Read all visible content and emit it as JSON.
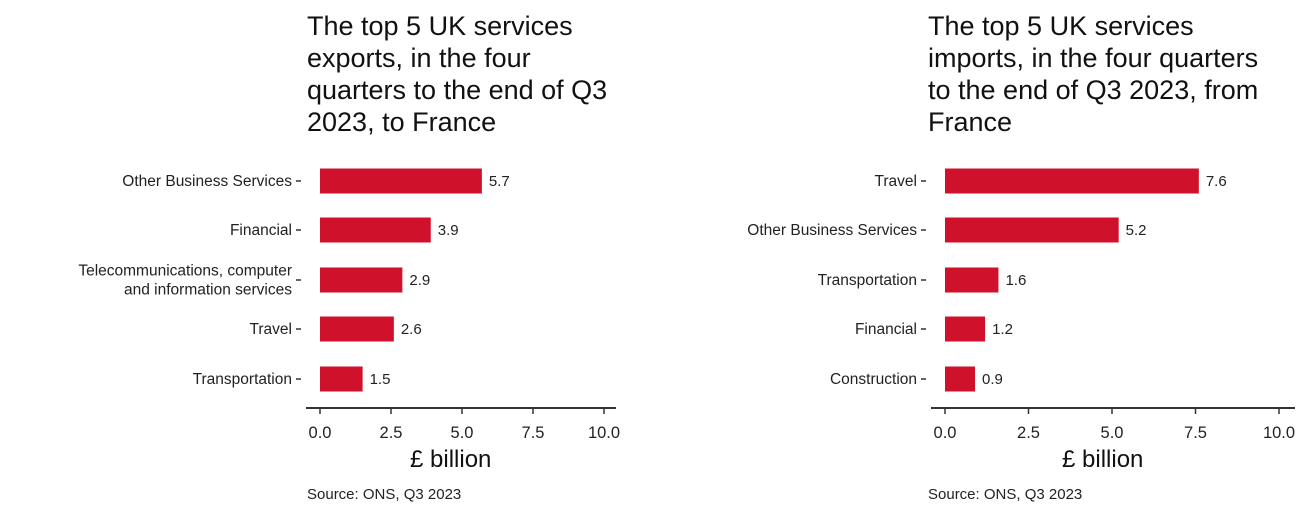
{
  "chart_data": [
    {
      "type": "bar",
      "orientation": "horizontal",
      "title": "The top 5 UK services exports, in the four quarters to the end of Q3 2023, to France",
      "categories": [
        "Other Business Services",
        "Financial",
        "Telecommunications, computer and information services",
        "Travel",
        "Transportation"
      ],
      "values": [
        5.7,
        3.9,
        2.9,
        2.6,
        1.5
      ],
      "xlabel": "£ billion",
      "ylabel": "",
      "xlim": [
        0,
        10
      ],
      "xticks": [
        "0.0",
        "2.5",
        "5.0",
        "7.5",
        "10.0"
      ],
      "grid": false,
      "bar_color": "#d0112b",
      "source": "Source: ONS, Q3 2023"
    },
    {
      "type": "bar",
      "orientation": "horizontal",
      "title": "The top 5 UK services imports, in the four quarters to the end of Q3 2023, from France",
      "categories": [
        "Travel",
        "Other Business Services",
        "Transportation",
        "Financial",
        "Construction"
      ],
      "values": [
        7.6,
        5.2,
        1.6,
        1.2,
        0.9
      ],
      "xlabel": "£ billion",
      "ylabel": "",
      "xlim": [
        0,
        10
      ],
      "xticks": [
        "0.0",
        "2.5",
        "5.0",
        "7.5",
        "10.0"
      ],
      "grid": false,
      "bar_color": "#d0112b",
      "source": "Source: ONS, Q3 2023"
    }
  ]
}
